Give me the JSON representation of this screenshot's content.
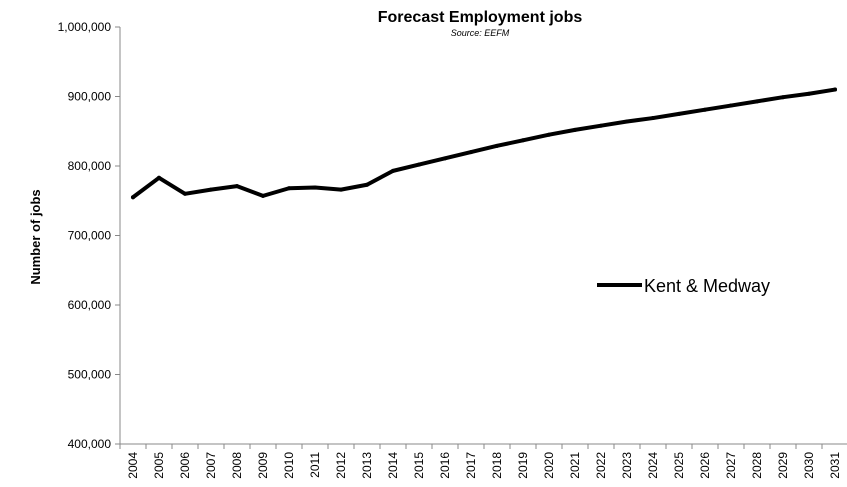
{
  "chart_data": {
    "type": "line",
    "title": "Forecast Employment jobs",
    "subtitle": "Source: EEFM",
    "xlabel": "",
    "ylabel": "Number of jobs",
    "x": [
      "2004",
      "2005",
      "2006",
      "2007",
      "2008",
      "2009",
      "2010",
      "2011",
      "2012",
      "2013",
      "2014",
      "2015",
      "2016",
      "2017",
      "2018",
      "2019",
      "2020",
      "2021",
      "2022",
      "2023",
      "2024",
      "2025",
      "2026",
      "2027",
      "2028",
      "2029",
      "2030",
      "2031"
    ],
    "ylim": [
      400000,
      1000000
    ],
    "yticks": [
      400000,
      500000,
      600000,
      700000,
      800000,
      900000,
      1000000
    ],
    "ytick_labels": [
      "400,000",
      "500,000",
      "600,000",
      "700,000",
      "800,000",
      "900,000",
      "1,000,000"
    ],
    "series": [
      {
        "name": "Kent & Medway",
        "color": "#000000",
        "values": [
          755000,
          783000,
          760000,
          766000,
          771000,
          757000,
          768000,
          769000,
          766000,
          773000,
          793000,
          802000,
          811000,
          820000,
          829000,
          837000,
          845000,
          852000,
          858000,
          864000,
          869000,
          875000,
          881000,
          887000,
          893000,
          899000,
          904000,
          910000
        ]
      }
    ],
    "grid": false,
    "legend_position": "right"
  }
}
